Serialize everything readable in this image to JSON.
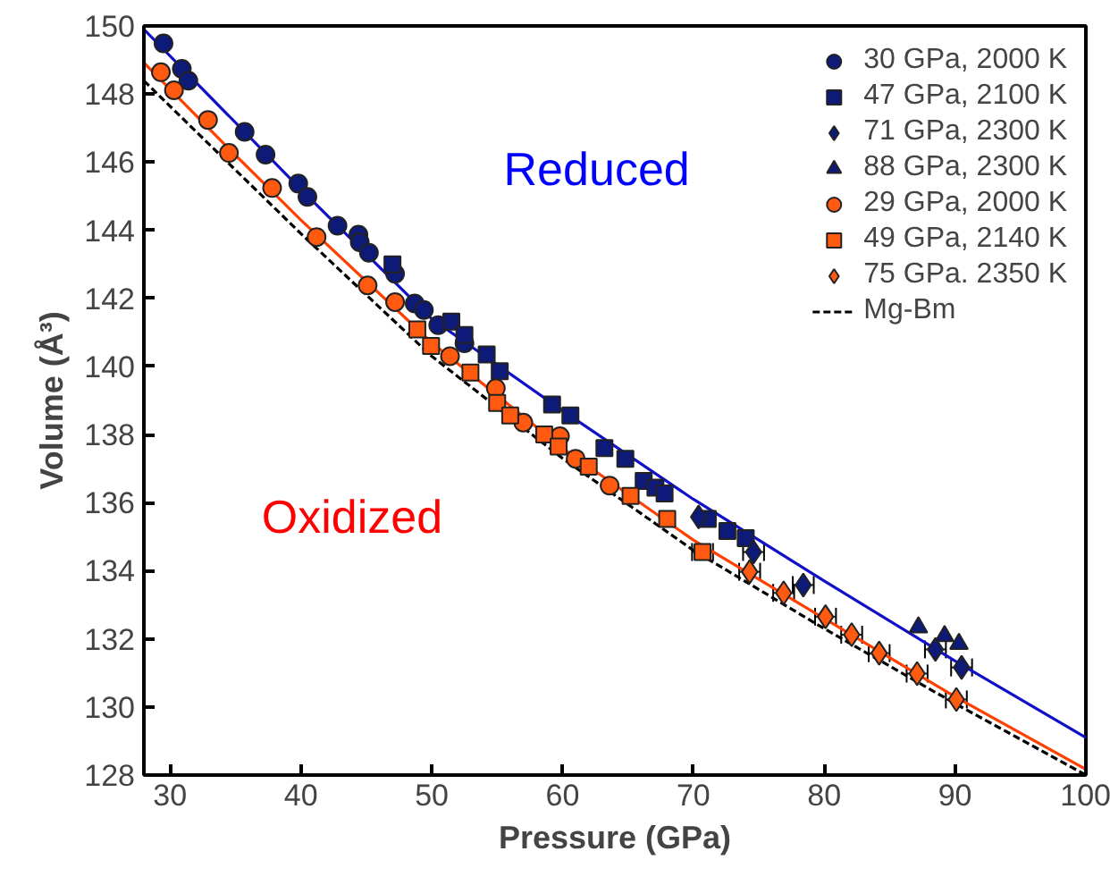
{
  "chart_data": {
    "type": "scatter",
    "xlabel": "Pressure (GPa)",
    "ylabel": "Volume (Å³)",
    "xlim": [
      28,
      100
    ],
    "ylim": [
      128,
      150
    ],
    "xticks": [
      30,
      40,
      50,
      60,
      70,
      80,
      90,
      100
    ],
    "yticks": [
      128,
      130,
      132,
      134,
      136,
      138,
      140,
      142,
      144,
      146,
      148,
      150
    ],
    "grid": false,
    "legend": "top right",
    "annotations": [
      "Reduced",
      "Oxidized"
    ],
    "series": [
      {
        "name": "30 GPa, 2000 K",
        "color": "#0d1a78",
        "marker": "circle",
        "x": [
          29.5,
          30.9,
          31.4,
          35.7,
          37.3,
          39.8,
          40.5,
          42.8,
          44.4,
          44.5,
          45.2,
          47.2,
          48.7,
          49.4,
          50.5,
          52.5
        ],
        "values": [
          149.49,
          148.74,
          148.39,
          146.89,
          146.22,
          145.37,
          144.98,
          144.13,
          143.87,
          143.65,
          143.34,
          142.72,
          141.85,
          141.66,
          141.21,
          140.68
        ]
      },
      {
        "name": "47 GPa, 2100 K",
        "color": "#0d1a78",
        "marker": "square",
        "x": [
          47.0,
          51.5,
          52.5,
          54.2,
          55.2,
          59.2,
          60.6,
          63.2,
          64.8,
          66.2,
          67.1,
          67.8,
          71.1,
          72.6,
          74.0
        ],
        "values": [
          143.0,
          141.32,
          140.92,
          140.35,
          139.86,
          138.88,
          138.56,
          137.6,
          137.29,
          136.64,
          136.44,
          136.27,
          135.52,
          135.17,
          134.96
        ]
      },
      {
        "name": "71 GPa, 2300 K",
        "color": "#0d1a78",
        "marker": "diamond",
        "x": [
          70.4,
          74.6,
          78.4,
          88.5,
          90.5
        ],
        "values": [
          135.58,
          134.55,
          133.58,
          131.69,
          131.16
        ],
        "xerrors": [
          null,
          0.8,
          0.8,
          0.8,
          0.8
        ]
      },
      {
        "name": "88 GPa, 2300 K",
        "color": "#0d1a78",
        "marker": "triangle",
        "x": [
          87.2,
          89.2,
          90.3
        ],
        "values": [
          132.34,
          132.08,
          131.85
        ]
      },
      {
        "name": "29 GPa, 2000 K",
        "color": "#ff5a10",
        "marker": "circle",
        "x": [
          29.3,
          30.3,
          32.9,
          34.5,
          37.8,
          41.2,
          45.1,
          47.2,
          51.4,
          54.9,
          57.0,
          59.8,
          61.0,
          63.6
        ],
        "values": [
          148.64,
          148.11,
          147.24,
          146.27,
          145.24,
          143.8,
          142.38,
          141.89,
          140.3,
          139.36,
          138.35,
          137.95,
          137.29,
          136.5
        ]
      },
      {
        "name": "49 GPa, 2140 K",
        "color": "#ff5a10",
        "marker": "square",
        "x": [
          48.9,
          49.95,
          52.96,
          55.0,
          56.0,
          58.6,
          59.7,
          62.0,
          65.2,
          68.0,
          70.7
        ],
        "values": [
          141.09,
          140.6,
          139.82,
          138.93,
          138.56,
          138.0,
          137.65,
          137.06,
          136.2,
          135.52,
          134.55
        ],
        "xerrors": [
          null,
          null,
          null,
          null,
          null,
          null,
          null,
          null,
          null,
          null,
          0.8
        ]
      },
      {
        "name": "75 GPa. 2350 K",
        "color": "#ff5a10",
        "marker": "diamond",
        "x": [
          74.3,
          76.9,
          80.1,
          82.1,
          84.2,
          87.1,
          90.1
        ],
        "values": [
          133.97,
          133.35,
          132.65,
          132.12,
          131.58,
          130.98,
          130.22
        ],
        "xerrors": [
          0.8,
          0.8,
          0.8,
          0.8,
          0.8,
          0.8,
          0.8
        ]
      },
      {
        "type": "line",
        "color": "#1010c8",
        "line_style": "solid",
        "x": [
          28,
          40,
          50,
          60,
          70,
          80,
          90,
          100
        ],
        "values": [
          149.9,
          145.2,
          141.4,
          138.7,
          136.1,
          133.7,
          131.35,
          129.1
        ]
      },
      {
        "type": "line",
        "color": "#ff4000",
        "line_style": "solid",
        "x": [
          28,
          35,
          40,
          50,
          60,
          70,
          80,
          90,
          100
        ],
        "values": [
          148.92,
          146.2,
          144.3,
          140.7,
          137.6,
          134.9,
          132.6,
          130.3,
          128.17
        ]
      },
      {
        "type": "line",
        "name": "Mg-Bm",
        "color": "#000000",
        "line_style": "dashed",
        "x": [
          28,
          40,
          50,
          60,
          70,
          80,
          90,
          100
        ],
        "values": [
          148.39,
          143.9,
          140.3,
          137.3,
          134.6,
          132.3,
          130.1,
          128.0
        ]
      }
    ]
  }
}
